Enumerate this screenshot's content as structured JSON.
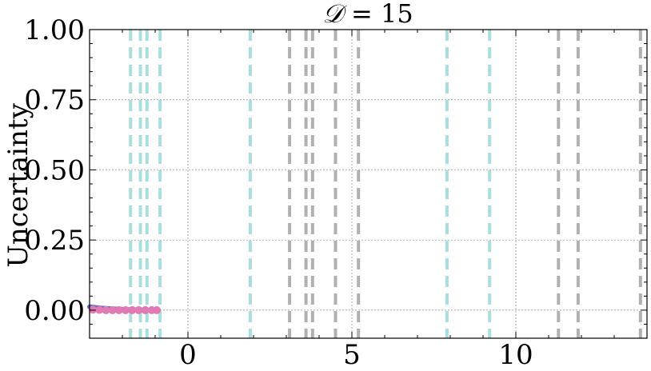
{
  "chart_data": {
    "type": "scatter",
    "title": {
      "prefix": "𝒟",
      "suffix": " = 15"
    },
    "xlabel": "",
    "ylabel": "Uncertainty",
    "xlim": [
      -3.0,
      14.0
    ],
    "ylim": [
      -0.1,
      1.0
    ],
    "xticks": [
      0,
      5,
      10
    ],
    "yticks": [
      0.0,
      0.25,
      0.5,
      0.75,
      1.0
    ],
    "xtick_labels": [
      "0",
      "5",
      "10"
    ],
    "ytick_labels": [
      "0.00",
      "0.25",
      "0.50",
      "0.75",
      "1.00"
    ],
    "grid": true,
    "vlines_cyan": [
      -1.75,
      -1.45,
      -1.25,
      -0.85,
      1.9,
      7.9,
      9.2
    ],
    "vlines_gray": [
      3.1,
      3.6,
      3.8,
      4.5,
      5.2,
      11.3,
      11.9,
      13.8
    ],
    "series": [
      {
        "x": [
          -3.0,
          -2.6,
          -2.2,
          -1.8,
          -1.4,
          -1.0,
          -0.9
        ],
        "values": [
          0.012,
          0.007,
          0.004,
          0.002,
          0.001,
          0.0,
          0.0
        ]
      },
      {
        "x": [
          -2.9,
          -2.7,
          -2.5,
          -2.3,
          -2.1,
          -1.9,
          -1.7,
          -1.5,
          -1.3,
          -1.1,
          -0.95
        ],
        "values": [
          0.002,
          0.001,
          0.0,
          0.0,
          0.0,
          0.0,
          0.0,
          0.0,
          0.0,
          0.0,
          0.0
        ]
      }
    ],
    "colors": {
      "line": "#5b6fc2",
      "points": "#e27ab5",
      "cyan": "#a8dedd",
      "gray": "#b0b0b0",
      "grid": "#888888"
    }
  }
}
